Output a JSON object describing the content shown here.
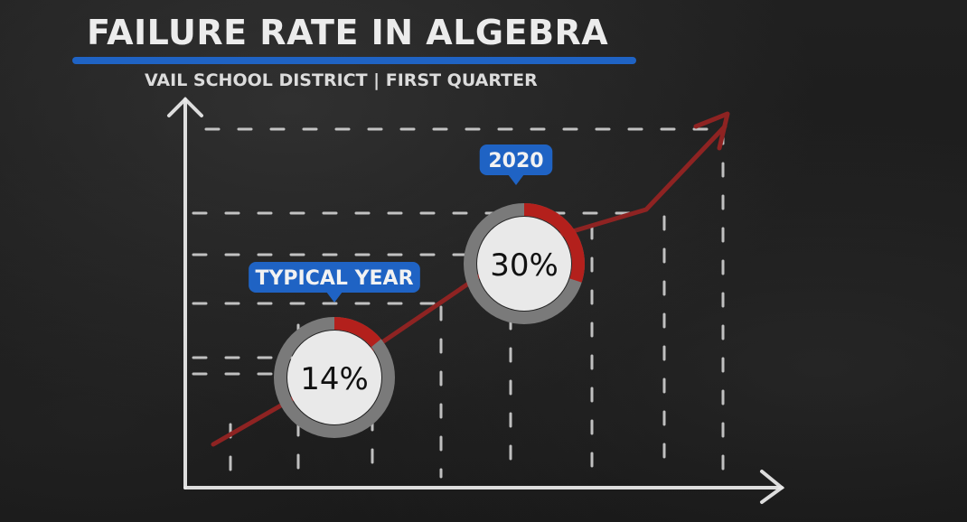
{
  "header": {
    "title": "FAILURE RATE IN ALGEBRA",
    "subtitle": "VAIL SCHOOL DISTRICT | FIRST QUARTER"
  },
  "chart_data": {
    "type": "line",
    "title": "FAILURE RATE IN ALGEBRA",
    "subtitle": "VAIL SCHOOL DISTRICT | FIRST QUARTER",
    "categories": [
      "TYPICAL YEAR",
      "2020"
    ],
    "values": [
      14,
      30
    ],
    "value_labels": [
      "14%",
      "30%"
    ],
    "unit": "%",
    "xlabel": "",
    "ylabel": "",
    "grid": true,
    "trend_arrow": true
  },
  "colors": {
    "accent_blue": "#1f63c4",
    "trend_red": "#8e2322",
    "ring_gray": "#7a7a7a",
    "ring_red": "#b3201c",
    "chalk": "#e8e8e8"
  }
}
